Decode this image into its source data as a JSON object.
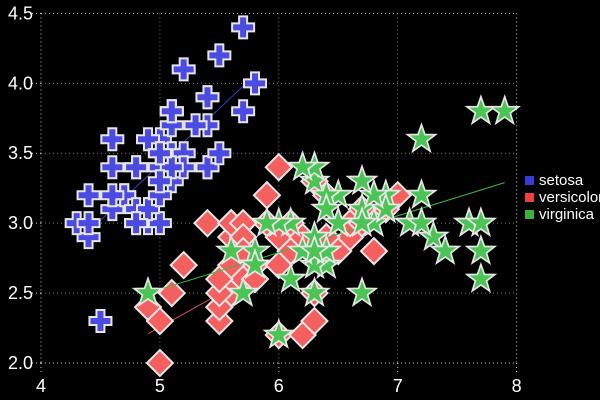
{
  "chart_data": {
    "type": "scatter",
    "title": "",
    "xlabel": "",
    "ylabel": "",
    "xlim": [
      4,
      8
    ],
    "ylim": [
      2.0,
      4.5
    ],
    "grid": true,
    "background": "#000000",
    "grid_color": "#7a7a7a",
    "border_color": "#c8c8c8",
    "tick_label_color": "#ffffff",
    "marker_outline_color": "#e6e6e6",
    "legend_position": "right-outside",
    "x_ticks": [
      {
        "value": 4,
        "label": "4"
      },
      {
        "value": 5,
        "label": "5"
      },
      {
        "value": 6,
        "label": "6"
      },
      {
        "value": 7,
        "label": "7"
      },
      {
        "value": 8,
        "label": "8"
      }
    ],
    "y_ticks": [
      {
        "value": 2.0,
        "label": "2.0"
      },
      {
        "value": 2.5,
        "label": "2.5"
      },
      {
        "value": 3.0,
        "label": "3.0"
      },
      {
        "value": 3.5,
        "label": "3.5"
      },
      {
        "value": 4.0,
        "label": "4.0"
      },
      {
        "value": 4.5,
        "label": "4.5"
      }
    ],
    "series": [
      {
        "name": "setosa",
        "marker": "plus",
        "fill": "#4b4be2",
        "line_color": "#3c3ccd",
        "fit_line": {
          "x1": 4.3,
          "y1": 2.86,
          "x2": 5.8,
          "y2": 4.06
        },
        "points": [
          [
            5.1,
            3.5
          ],
          [
            4.9,
            3.0
          ],
          [
            4.7,
            3.2
          ],
          [
            4.6,
            3.1
          ],
          [
            5.0,
            3.6
          ],
          [
            5.4,
            3.9
          ],
          [
            4.6,
            3.4
          ],
          [
            5.0,
            3.4
          ],
          [
            4.4,
            2.9
          ],
          [
            4.9,
            3.1
          ],
          [
            5.4,
            3.7
          ],
          [
            4.8,
            3.4
          ],
          [
            4.8,
            3.0
          ],
          [
            4.3,
            3.0
          ],
          [
            5.8,
            4.0
          ],
          [
            5.7,
            4.4
          ],
          [
            5.4,
            3.9
          ],
          [
            5.1,
            3.5
          ],
          [
            5.7,
            3.8
          ],
          [
            5.1,
            3.8
          ],
          [
            5.4,
            3.4
          ],
          [
            5.1,
            3.7
          ],
          [
            4.6,
            3.6
          ],
          [
            5.1,
            3.3
          ],
          [
            4.8,
            3.4
          ],
          [
            5.0,
            3.0
          ],
          [
            5.0,
            3.4
          ],
          [
            5.2,
            3.5
          ],
          [
            5.2,
            3.4
          ],
          [
            4.7,
            3.2
          ],
          [
            4.8,
            3.1
          ],
          [
            5.4,
            3.4
          ],
          [
            5.2,
            4.1
          ],
          [
            5.5,
            4.2
          ],
          [
            4.9,
            3.1
          ],
          [
            5.0,
            3.2
          ],
          [
            5.5,
            3.5
          ],
          [
            4.9,
            3.6
          ],
          [
            4.4,
            3.0
          ],
          [
            5.1,
            3.4
          ],
          [
            5.0,
            3.5
          ],
          [
            4.5,
            2.3
          ],
          [
            4.4,
            3.2
          ],
          [
            5.0,
            3.5
          ],
          [
            5.1,
            3.8
          ],
          [
            4.8,
            3.0
          ],
          [
            5.1,
            3.8
          ],
          [
            4.6,
            3.2
          ],
          [
            5.3,
            3.7
          ],
          [
            5.0,
            3.3
          ]
        ]
      },
      {
        "name": "versicolor",
        "marker": "diamond",
        "fill": "#f45f5f",
        "line_color": "#e04f4f",
        "fit_line": {
          "x1": 4.9,
          "y1": 2.21,
          "x2": 7.0,
          "y2": 3.2
        },
        "points": [
          [
            7.0,
            3.2
          ],
          [
            6.4,
            3.2
          ],
          [
            6.9,
            3.1
          ],
          [
            5.5,
            2.3
          ],
          [
            6.5,
            2.8
          ],
          [
            5.7,
            2.8
          ],
          [
            6.3,
            3.3
          ],
          [
            4.9,
            2.4
          ],
          [
            6.6,
            2.9
          ],
          [
            5.2,
            2.7
          ],
          [
            5.0,
            2.0
          ],
          [
            5.9,
            3.0
          ],
          [
            6.0,
            2.2
          ],
          [
            6.1,
            2.9
          ],
          [
            5.6,
            2.9
          ],
          [
            6.7,
            3.1
          ],
          [
            5.6,
            3.0
          ],
          [
            5.8,
            2.7
          ],
          [
            6.2,
            2.2
          ],
          [
            5.6,
            2.5
          ],
          [
            5.9,
            3.2
          ],
          [
            6.1,
            2.8
          ],
          [
            6.3,
            2.5
          ],
          [
            6.1,
            2.8
          ],
          [
            6.4,
            2.9
          ],
          [
            6.6,
            3.0
          ],
          [
            6.8,
            2.8
          ],
          [
            6.7,
            3.0
          ],
          [
            6.0,
            2.9
          ],
          [
            5.7,
            2.6
          ],
          [
            5.5,
            2.4
          ],
          [
            5.5,
            2.4
          ],
          [
            5.8,
            2.7
          ],
          [
            6.0,
            2.7
          ],
          [
            5.4,
            3.0
          ],
          [
            6.0,
            3.4
          ],
          [
            6.7,
            3.1
          ],
          [
            6.3,
            2.3
          ],
          [
            5.6,
            3.0
          ],
          [
            5.5,
            2.5
          ],
          [
            5.5,
            2.6
          ],
          [
            6.1,
            3.0
          ],
          [
            5.8,
            2.6
          ],
          [
            5.0,
            2.3
          ],
          [
            5.6,
            2.7
          ],
          [
            5.7,
            3.0
          ],
          [
            5.7,
            2.9
          ],
          [
            6.2,
            2.9
          ],
          [
            5.1,
            2.5
          ],
          [
            5.7,
            2.8
          ]
        ]
      },
      {
        "name": "virginica",
        "marker": "star",
        "fill": "#4cc455",
        "line_color": "#3db843",
        "fit_line": {
          "x1": 4.9,
          "y1": 2.5,
          "x2": 7.9,
          "y2": 3.29
        },
        "points": [
          [
            6.3,
            3.3
          ],
          [
            5.8,
            2.7
          ],
          [
            7.1,
            3.0
          ],
          [
            6.3,
            2.9
          ],
          [
            6.5,
            3.0
          ],
          [
            7.6,
            3.0
          ],
          [
            4.9,
            2.5
          ],
          [
            7.3,
            2.9
          ],
          [
            6.7,
            2.5
          ],
          [
            7.2,
            3.6
          ],
          [
            6.5,
            3.2
          ],
          [
            6.4,
            2.7
          ],
          [
            6.8,
            3.0
          ],
          [
            5.7,
            2.5
          ],
          [
            5.8,
            2.8
          ],
          [
            6.4,
            3.2
          ],
          [
            6.5,
            3.0
          ],
          [
            7.7,
            3.8
          ],
          [
            7.7,
            2.6
          ],
          [
            6.0,
            2.2
          ],
          [
            6.9,
            3.2
          ],
          [
            5.6,
            2.8
          ],
          [
            7.7,
            2.8
          ],
          [
            6.3,
            2.7
          ],
          [
            6.7,
            3.3
          ],
          [
            7.2,
            3.2
          ],
          [
            6.2,
            2.8
          ],
          [
            6.1,
            3.0
          ],
          [
            6.4,
            2.8
          ],
          [
            7.2,
            3.0
          ],
          [
            7.4,
            2.8
          ],
          [
            7.9,
            3.8
          ],
          [
            6.4,
            2.8
          ],
          [
            6.3,
            2.8
          ],
          [
            6.1,
            2.6
          ],
          [
            7.7,
            3.0
          ],
          [
            6.3,
            3.4
          ],
          [
            6.4,
            3.1
          ],
          [
            6.0,
            3.0
          ],
          [
            6.9,
            3.1
          ],
          [
            6.7,
            3.1
          ],
          [
            6.9,
            3.1
          ],
          [
            5.8,
            2.7
          ],
          [
            6.8,
            3.2
          ],
          [
            6.7,
            3.3
          ],
          [
            6.7,
            3.0
          ],
          [
            6.3,
            2.5
          ],
          [
            6.5,
            3.0
          ],
          [
            6.2,
            3.4
          ],
          [
            5.9,
            3.0
          ]
        ]
      }
    ]
  },
  "legend": {
    "items": [
      {
        "label": "setosa",
        "color": "#3a3ad6"
      },
      {
        "label": "versicolor",
        "color": "#ef4040"
      },
      {
        "label": "virginica",
        "color": "#3cb23c"
      }
    ]
  }
}
